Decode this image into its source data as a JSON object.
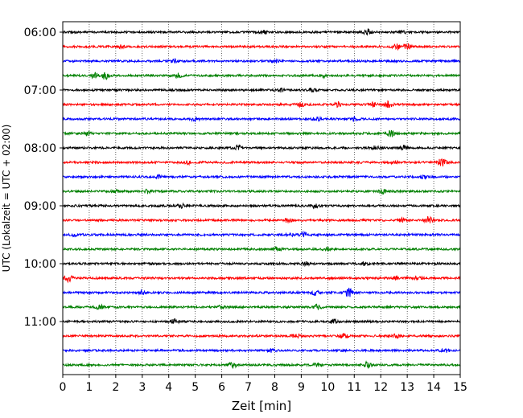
{
  "chart_data": {
    "type": "line",
    "title": "",
    "xlabel": "Zeit  [min]",
    "ylabel": "UTC (Lokalzeit = UTC + 02:00)",
    "xlim": [
      0,
      15
    ],
    "x_ticks": [
      0,
      1,
      2,
      3,
      4,
      5,
      6,
      7,
      8,
      9,
      10,
      11,
      12,
      13,
      14,
      15
    ],
    "y_tick_labels": [
      "06:00",
      "07:00",
      "08:00",
      "09:00",
      "10:00",
      "11:00"
    ],
    "grid": "vertical dotted",
    "trace_colors": [
      "#000000",
      "#ff0000",
      "#0000ff",
      "#008000"
    ],
    "traces": [
      {
        "start": "06:00",
        "color": "#000000",
        "events": [
          {
            "t": 11.5,
            "a": 2.2
          },
          {
            "t": 7.6,
            "a": 1.3
          },
          {
            "t": 12.8,
            "a": 1.2
          }
        ]
      },
      {
        "start": "06:15",
        "color": "#ff0000",
        "events": [
          {
            "t": 12.6,
            "a": 1.8
          },
          {
            "t": 13.0,
            "a": 2.4
          },
          {
            "t": 2.2,
            "a": 1.2
          }
        ]
      },
      {
        "start": "06:30",
        "color": "#0000ff",
        "events": [
          {
            "t": 8.0,
            "a": 1.2
          },
          {
            "t": 4.2,
            "a": 1.2
          }
        ]
      },
      {
        "start": "06:45",
        "color": "#008000",
        "events": [
          {
            "t": 1.2,
            "a": 2.0
          },
          {
            "t": 1.6,
            "a": 2.6
          },
          {
            "t": 4.4,
            "a": 1.5
          },
          {
            "t": 9.8,
            "a": 1.3
          }
        ]
      },
      {
        "start": "07:00",
        "color": "#000000",
        "events": [
          {
            "t": 8.2,
            "a": 1.4
          },
          {
            "t": 9.4,
            "a": 1.2
          }
        ]
      },
      {
        "start": "07:15",
        "color": "#ff0000",
        "events": [
          {
            "t": 9.0,
            "a": 1.5
          },
          {
            "t": 10.4,
            "a": 1.5
          },
          {
            "t": 12.3,
            "a": 2.2
          },
          {
            "t": 11.7,
            "a": 1.6
          }
        ]
      },
      {
        "start": "07:30",
        "color": "#0000ff",
        "events": [
          {
            "t": 5.0,
            "a": 1.4
          },
          {
            "t": 9.6,
            "a": 1.5
          },
          {
            "t": 11.0,
            "a": 1.3
          }
        ]
      },
      {
        "start": "07:45",
        "color": "#008000",
        "events": [
          {
            "t": 12.4,
            "a": 2.2
          },
          {
            "t": 0.9,
            "a": 1.3
          }
        ]
      },
      {
        "start": "08:00",
        "color": "#000000",
        "events": [
          {
            "t": 6.6,
            "a": 2.0
          },
          {
            "t": 12.9,
            "a": 1.7
          },
          {
            "t": 11.8,
            "a": 1.4
          }
        ]
      },
      {
        "start": "08:15",
        "color": "#ff0000",
        "events": [
          {
            "t": 14.3,
            "a": 3.4
          },
          {
            "t": 4.7,
            "a": 1.3
          },
          {
            "t": 12.5,
            "a": 1.2
          }
        ]
      },
      {
        "start": "08:30",
        "color": "#0000ff",
        "events": [
          {
            "t": 3.6,
            "a": 1.2
          },
          {
            "t": 13.6,
            "a": 1.2
          }
        ]
      },
      {
        "start": "08:45",
        "color": "#008000",
        "events": [
          {
            "t": 3.2,
            "a": 1.6
          },
          {
            "t": 12.1,
            "a": 1.6
          },
          {
            "t": 2.0,
            "a": 1.2
          }
        ]
      },
      {
        "start": "09:00",
        "color": "#000000",
        "events": [
          {
            "t": 4.5,
            "a": 1.6
          },
          {
            "t": 9.5,
            "a": 1.3
          }
        ]
      },
      {
        "start": "09:15",
        "color": "#ff0000",
        "events": [
          {
            "t": 13.8,
            "a": 2.4
          },
          {
            "t": 8.5,
            "a": 1.4
          },
          {
            "t": 12.8,
            "a": 1.4
          }
        ]
      },
      {
        "start": "09:30",
        "color": "#0000ff",
        "events": [
          {
            "t": 9.1,
            "a": 1.6
          },
          {
            "t": 8.6,
            "a": 1.4
          },
          {
            "t": 0.5,
            "a": 1.4
          }
        ]
      },
      {
        "start": "09:45",
        "color": "#008000",
        "events": [
          {
            "t": 8.1,
            "a": 1.4
          },
          {
            "t": 10.0,
            "a": 1.2
          }
        ]
      },
      {
        "start": "10:00",
        "color": "#000000",
        "events": [
          {
            "t": 9.2,
            "a": 1.4
          },
          {
            "t": 11.4,
            "a": 1.2
          }
        ]
      },
      {
        "start": "10:15",
        "color": "#ff0000",
        "events": [
          {
            "t": 0.2,
            "a": 2.5
          },
          {
            "t": 12.6,
            "a": 1.4
          },
          {
            "t": 13.4,
            "a": 1.2
          }
        ]
      },
      {
        "start": "10:30",
        "color": "#0000ff",
        "events": [
          {
            "t": 10.8,
            "a": 3.0
          },
          {
            "t": 9.5,
            "a": 1.7
          },
          {
            "t": 3.0,
            "a": 1.2
          }
        ]
      },
      {
        "start": "10:45",
        "color": "#008000",
        "events": [
          {
            "t": 9.6,
            "a": 2.0
          },
          {
            "t": 1.4,
            "a": 1.4
          },
          {
            "t": 6.0,
            "a": 1.2
          }
        ]
      },
      {
        "start": "11:00",
        "color": "#000000",
        "events": [
          {
            "t": 4.2,
            "a": 1.5
          },
          {
            "t": 10.2,
            "a": 1.5
          }
        ]
      },
      {
        "start": "11:15",
        "color": "#ff0000",
        "events": [
          {
            "t": 8.8,
            "a": 1.7
          },
          {
            "t": 10.6,
            "a": 1.8
          },
          {
            "t": 12.6,
            "a": 1.4
          }
        ]
      },
      {
        "start": "11:30",
        "color": "#0000ff",
        "events": [
          {
            "t": 14.4,
            "a": 1.8
          },
          {
            "t": 7.9,
            "a": 1.3
          }
        ]
      },
      {
        "start": "11:45",
        "color": "#008000",
        "events": [
          {
            "t": 6.4,
            "a": 2.4
          },
          {
            "t": 11.5,
            "a": 2.2
          },
          {
            "t": 9.6,
            "a": 1.4
          }
        ]
      }
    ]
  }
}
